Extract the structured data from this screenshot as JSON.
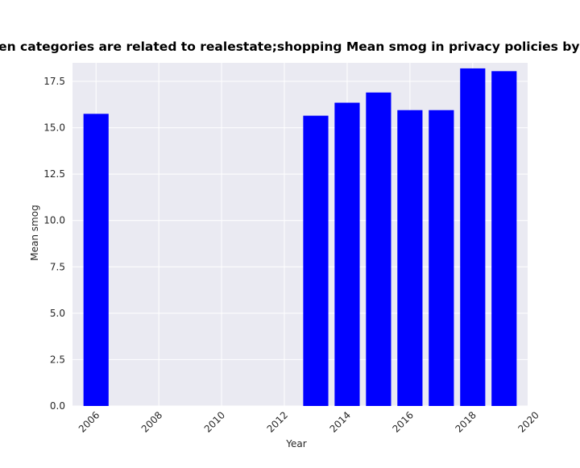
{
  "chart_data": {
    "type": "bar",
    "title": "when categories are related to realestate;shopping Mean smog in privacy policies by Year",
    "xlabel": "Year",
    "ylabel": "Mean smog",
    "x": [
      2006,
      2013,
      2014,
      2015,
      2016,
      2017,
      2018,
      2019
    ],
    "values": [
      15.75,
      15.65,
      16.35,
      16.9,
      15.95,
      15.95,
      18.2,
      18.05
    ],
    "bar_width": 0.8,
    "xlim": [
      2005.25,
      2019.75
    ],
    "ylim": [
      0,
      18.5
    ],
    "x_ticks": [
      "2006",
      "2008",
      "2010",
      "2012",
      "2014",
      "2016",
      "2018",
      "2020"
    ],
    "y_ticks": [
      "0.0",
      "2.5",
      "5.0",
      "7.5",
      "10.0",
      "12.5",
      "15.0",
      "17.5"
    ],
    "grid": true,
    "background_color": "#eaeaf2",
    "grid_color": "#ffffff",
    "bar_color": "#0000ff"
  }
}
